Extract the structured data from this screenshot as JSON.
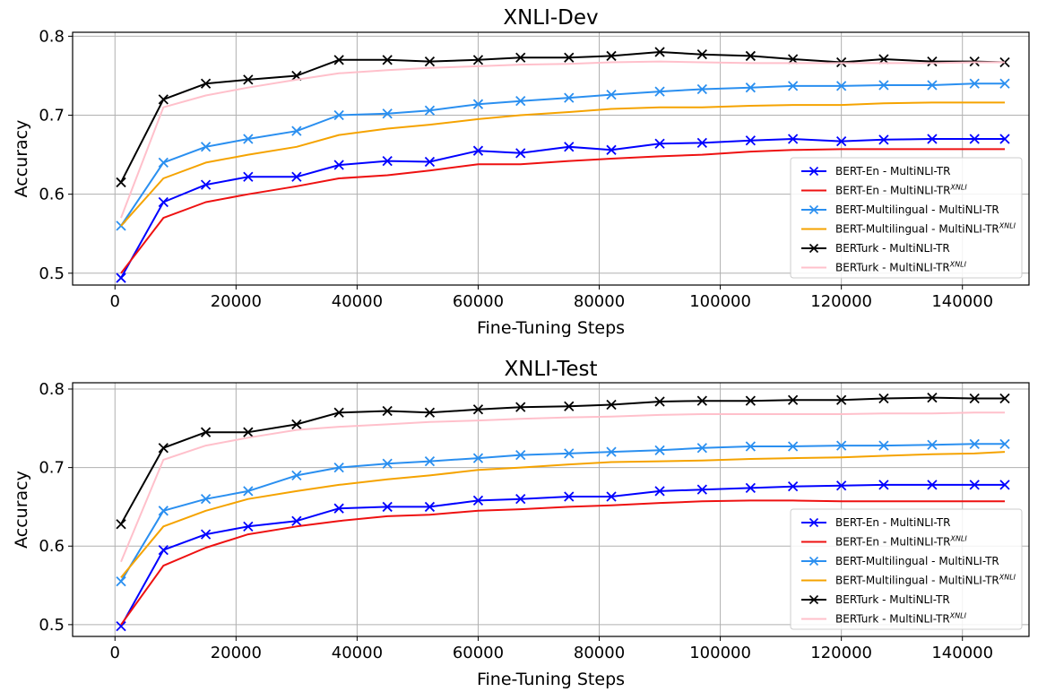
{
  "chart_data": [
    {
      "type": "line",
      "title": "XNLI-Dev",
      "xlabel": "Fine-Tuning Steps",
      "ylabel": "Accuracy",
      "xlim": [
        -7000,
        151000
      ],
      "ylim": [
        0.485,
        0.805
      ],
      "xticks": [
        0,
        20000,
        40000,
        60000,
        80000,
        100000,
        120000,
        140000
      ],
      "yticks": [
        0.5,
        0.6,
        0.7,
        0.8
      ],
      "grid": true,
      "legend": "lower-right",
      "x": [
        1000,
        8000,
        15000,
        22000,
        30000,
        37000,
        45000,
        52000,
        60000,
        67000,
        75000,
        82000,
        90000,
        97000,
        105000,
        112000,
        120000,
        127000,
        135000,
        142000,
        147000
      ],
      "series": [
        {
          "name": "BERT-En - MultiNLI-TR",
          "sup": "",
          "color": "#0000ff",
          "marker": "x",
          "values": [
            0.494,
            0.59,
            0.612,
            0.622,
            0.622,
            0.637,
            0.642,
            0.641,
            0.655,
            0.652,
            0.66,
            0.656,
            0.664,
            0.665,
            0.668,
            0.67,
            0.667,
            0.669,
            0.67,
            0.67,
            0.67
          ]
        },
        {
          "name": "BERT-En - MultiNLI-TR",
          "sup": "XNLI",
          "color": "#ee1111",
          "marker": "none",
          "values": [
            0.5,
            0.57,
            0.59,
            0.6,
            0.61,
            0.62,
            0.624,
            0.63,
            0.638,
            0.638,
            0.642,
            0.645,
            0.648,
            0.65,
            0.654,
            0.656,
            0.657,
            0.657,
            0.657,
            0.657,
            0.657
          ]
        },
        {
          "name": "BERT-Multilingual - MultiNLI-TR",
          "sup": "",
          "color": "#2a8ff0",
          "marker": "x",
          "values": [
            0.56,
            0.64,
            0.66,
            0.67,
            0.68,
            0.7,
            0.702,
            0.706,
            0.714,
            0.718,
            0.722,
            0.726,
            0.73,
            0.733,
            0.735,
            0.737,
            0.737,
            0.738,
            0.738,
            0.74,
            0.74
          ]
        },
        {
          "name": "BERT-Multilingual - MultiNLI-TR",
          "sup": "XNLI",
          "color": "#f5a300",
          "marker": "none",
          "values": [
            0.56,
            0.62,
            0.64,
            0.65,
            0.66,
            0.675,
            0.683,
            0.688,
            0.695,
            0.7,
            0.704,
            0.708,
            0.71,
            0.71,
            0.712,
            0.713,
            0.713,
            0.715,
            0.716,
            0.716,
            0.716
          ]
        },
        {
          "name": "BERTurk - MultiNLI-TR",
          "sup": "",
          "color": "#000000",
          "marker": "x",
          "values": [
            0.615,
            0.72,
            0.74,
            0.745,
            0.75,
            0.77,
            0.77,
            0.768,
            0.77,
            0.773,
            0.773,
            0.775,
            0.78,
            0.777,
            0.775,
            0.771,
            0.767,
            0.771,
            0.768,
            0.768,
            0.767
          ]
        },
        {
          "name": "BERTurk - MultiNLI-TR",
          "sup": "XNLI",
          "color": "#ffc0cb",
          "marker": "none",
          "values": [
            0.57,
            0.71,
            0.725,
            0.735,
            0.745,
            0.753,
            0.757,
            0.76,
            0.762,
            0.764,
            0.765,
            0.767,
            0.768,
            0.767,
            0.766,
            0.766,
            0.766,
            0.766,
            0.766,
            0.767,
            0.767
          ]
        }
      ]
    },
    {
      "type": "line",
      "title": "XNLI-Test",
      "xlabel": "Fine-Tuning Steps",
      "ylabel": "Accuracy",
      "xlim": [
        -7000,
        151000
      ],
      "ylim": [
        0.485,
        0.808
      ],
      "xticks": [
        0,
        20000,
        40000,
        60000,
        80000,
        100000,
        120000,
        140000
      ],
      "yticks": [
        0.5,
        0.6,
        0.7,
        0.8
      ],
      "grid": true,
      "legend": "lower-right",
      "x": [
        1000,
        8000,
        15000,
        22000,
        30000,
        37000,
        45000,
        52000,
        60000,
        67000,
        75000,
        82000,
        90000,
        97000,
        105000,
        112000,
        120000,
        127000,
        135000,
        142000,
        147000
      ],
      "series": [
        {
          "name": "BERT-En - MultiNLI-TR",
          "sup": "",
          "color": "#0000ff",
          "marker": "x",
          "values": [
            0.498,
            0.595,
            0.615,
            0.625,
            0.632,
            0.648,
            0.65,
            0.65,
            0.658,
            0.66,
            0.663,
            0.663,
            0.67,
            0.672,
            0.674,
            0.676,
            0.677,
            0.678,
            0.678,
            0.678,
            0.678
          ]
        },
        {
          "name": "BERT-En - MultiNLI-TR",
          "sup": "XNLI",
          "color": "#ee1111",
          "marker": "none",
          "values": [
            0.5,
            0.575,
            0.598,
            0.615,
            0.625,
            0.632,
            0.638,
            0.64,
            0.645,
            0.647,
            0.65,
            0.652,
            0.655,
            0.657,
            0.658,
            0.658,
            0.657,
            0.657,
            0.657,
            0.657,
            0.657
          ]
        },
        {
          "name": "BERT-Multilingual - MultiNLI-TR",
          "sup": "",
          "color": "#2a8ff0",
          "marker": "x",
          "values": [
            0.555,
            0.645,
            0.66,
            0.67,
            0.69,
            0.7,
            0.705,
            0.708,
            0.712,
            0.716,
            0.718,
            0.72,
            0.722,
            0.725,
            0.727,
            0.727,
            0.728,
            0.728,
            0.729,
            0.73,
            0.73
          ]
        },
        {
          "name": "BERT-Multilingual - MultiNLI-TR",
          "sup": "XNLI",
          "color": "#f5a300",
          "marker": "none",
          "values": [
            0.56,
            0.625,
            0.645,
            0.66,
            0.67,
            0.678,
            0.685,
            0.69,
            0.697,
            0.7,
            0.704,
            0.707,
            0.708,
            0.709,
            0.711,
            0.712,
            0.713,
            0.715,
            0.717,
            0.718,
            0.72
          ]
        },
        {
          "name": "BERTurk - MultiNLI-TR",
          "sup": "",
          "color": "#000000",
          "marker": "x",
          "values": [
            0.628,
            0.725,
            0.745,
            0.745,
            0.755,
            0.77,
            0.772,
            0.77,
            0.774,
            0.777,
            0.778,
            0.78,
            0.784,
            0.785,
            0.785,
            0.786,
            0.786,
            0.788,
            0.789,
            0.788,
            0.788
          ]
        },
        {
          "name": "BERTurk - MultiNLI-TR",
          "sup": "XNLI",
          "color": "#ffc0cb",
          "marker": "none",
          "values": [
            0.58,
            0.71,
            0.728,
            0.738,
            0.748,
            0.752,
            0.755,
            0.758,
            0.76,
            0.762,
            0.764,
            0.765,
            0.767,
            0.768,
            0.768,
            0.768,
            0.768,
            0.769,
            0.769,
            0.77,
            0.77
          ]
        }
      ]
    }
  ]
}
